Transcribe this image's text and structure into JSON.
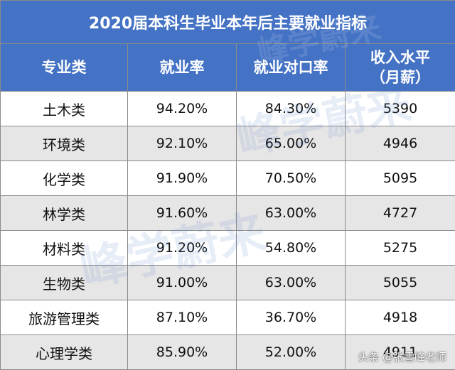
{
  "table": {
    "title": "2020届本科生毕业本年后主要就业指标",
    "headers": [
      "专业类",
      "就业率",
      "就业对口率",
      "收入水平\n（月薪）"
    ],
    "rows": [
      [
        "土木类",
        "94.20%",
        "84.30%",
        "5390"
      ],
      [
        "环境类",
        "92.10%",
        "65.00%",
        "4946"
      ],
      [
        "化学类",
        "91.90%",
        "70.50%",
        "5095"
      ],
      [
        "林学类",
        "91.60%",
        "63.00%",
        "4727"
      ],
      [
        "材料类",
        "91.20%",
        "54.80%",
        "5275"
      ],
      [
        "生物类",
        "91.00%",
        "63.00%",
        "5055"
      ],
      [
        "旅游管理类",
        "87.10%",
        "36.70%",
        "4918"
      ],
      [
        "心理学类",
        "85.90%",
        "52.00%",
        "4911"
      ]
    ]
  },
  "watermark": {
    "text": "峰学蔚来"
  },
  "credit": {
    "text": "头条 @张雪峰老师"
  },
  "colors": {
    "header_bg": "#4472c4",
    "header_text": "#ffffff",
    "stripe": "#e7e6e6",
    "border": "#8a8a8a"
  }
}
